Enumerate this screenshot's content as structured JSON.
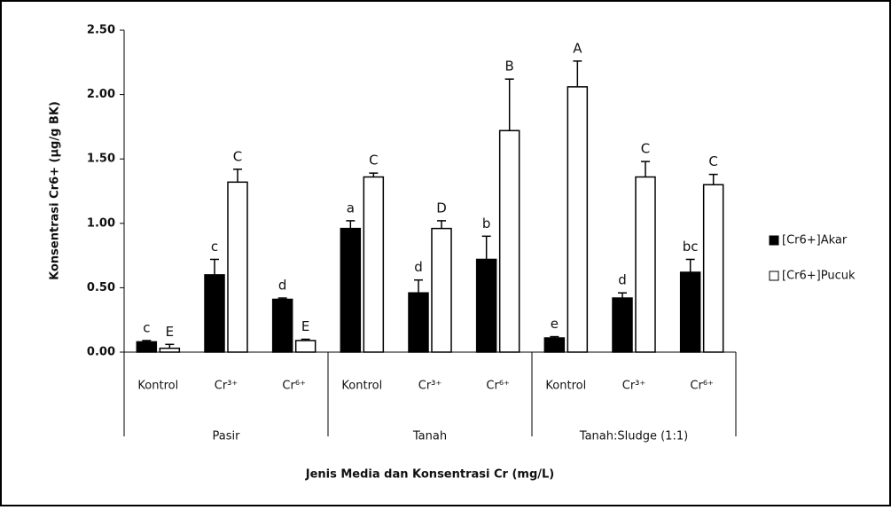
{
  "chart_data": {
    "type": "bar",
    "y_axis_label": "Konsentrasi Cr6+ (μg/g BK)",
    "x_axis_label": "Jenis Media dan Konsentrasi Cr (mg/L)",
    "categories": [
      "Kontrol",
      "Cr³⁺",
      "Cr⁶⁺",
      "Kontrol",
      "Cr³⁺",
      "Cr⁶⁺",
      "Kontrol",
      "Cr³⁺",
      "Cr⁶⁺"
    ],
    "groups": [
      "Pasir",
      "Tanah",
      "Tanah:Sludge (1:1)"
    ],
    "series": [
      {
        "name": "[Cr6+]Akar",
        "color": "#000000",
        "values": [
          0.08,
          0.6,
          0.41,
          0.96,
          0.46,
          0.72,
          0.11,
          0.42,
          0.62
        ],
        "errors": [
          0.01,
          0.12,
          0.01,
          0.06,
          0.1,
          0.18,
          0.01,
          0.04,
          0.1
        ],
        "letters": [
          "c",
          "c",
          "d",
          "a",
          "d",
          "b",
          "e",
          "d",
          "bc"
        ]
      },
      {
        "name": "[Cr6+]Pucuk",
        "color": "#ffffff",
        "values": [
          0.03,
          1.32,
          0.09,
          1.36,
          0.96,
          1.72,
          2.06,
          1.36,
          1.3
        ],
        "errors": [
          0.03,
          0.1,
          0.01,
          0.03,
          0.06,
          0.4,
          0.2,
          0.12,
          0.08
        ],
        "letters": [
          "E",
          "C",
          "E",
          "C",
          "D",
          "B",
          "A",
          "C",
          "C"
        ]
      }
    ],
    "ylim": [
      0,
      2.5
    ],
    "yticks": [
      {
        "value": 0,
        "label": "0.00"
      },
      {
        "value": 0.5,
        "label": "0.50"
      },
      {
        "value": 1,
        "label": "1.00"
      },
      {
        "value": 1.5,
        "label": "1.50"
      },
      {
        "value": 2,
        "label": "2.00"
      },
      {
        "value": 2.5,
        "label": "2.50"
      }
    ],
    "legend": "right"
  }
}
